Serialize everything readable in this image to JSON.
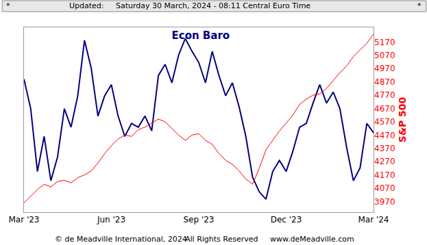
{
  "chart_data": {
    "type": "line",
    "title": "Econ Baro",
    "y2label": "S&P 500",
    "annotations": [
      "*",
      "Updated:",
      "Saturday 30 March, 2024 - 08:11 Central Euro Time",
      "*",
      "© de Meadville International, 2024",
      "All Rights Reserved",
      "www.deMeadville.com"
    ],
    "categories": [
      "Mar '23",
      null,
      null,
      null,
      null,
      null,
      null,
      null,
      null,
      null,
      null,
      null,
      null,
      "Jun '23",
      null,
      null,
      null,
      null,
      null,
      null,
      null,
      null,
      null,
      null,
      null,
      null,
      "Sep '23",
      null,
      null,
      null,
      null,
      null,
      null,
      null,
      null,
      null,
      null,
      null,
      null,
      "Dec '23",
      null,
      null,
      null,
      null,
      null,
      null,
      null,
      null,
      null,
      null,
      null,
      null,
      "Mar '24"
    ],
    "series": [
      {
        "name": "Econ Baro",
        "color": "#000080",
        "values": [
          72,
          56,
          22,
          41,
          17,
          30,
          56,
          46,
          63,
          93,
          78,
          52,
          63,
          69,
          52,
          41,
          48,
          46,
          52,
          44,
          74,
          80,
          70,
          85,
          94,
          87,
          81,
          70,
          87,
          74,
          63,
          70,
          57,
          41,
          19,
          11,
          7,
          22,
          28,
          22,
          33,
          46,
          48,
          59,
          69,
          59,
          65,
          56,
          35,
          17,
          24,
          48,
          43
        ]
      },
      {
        "name": "S&P 500",
        "color": "#ff0000",
        "axis": "y2",
        "values": [
          3960,
          4010,
          4060,
          4100,
          4080,
          4120,
          4130,
          4110,
          4150,
          4170,
          4200,
          4260,
          4330,
          4390,
          4440,
          4470,
          4460,
          4510,
          4530,
          4560,
          4590,
          4570,
          4520,
          4470,
          4430,
          4470,
          4480,
          4430,
          4400,
          4330,
          4280,
          4250,
          4200,
          4140,
          4100,
          4220,
          4360,
          4430,
          4500,
          4560,
          4620,
          4700,
          4740,
          4770,
          4780,
          4820,
          4880,
          4940,
          4990,
          5060,
          5110,
          5160,
          5230
        ]
      }
    ],
    "ylim": [
      0,
      100
    ],
    "yticks": [],
    "y2lim": [
      3890,
      5280
    ],
    "y2ticks": [
      3970,
      4070,
      4170,
      4270,
      4370,
      4470,
      4570,
      4670,
      4770,
      4870,
      4970,
      5070,
      5170
    ],
    "grid": false
  }
}
